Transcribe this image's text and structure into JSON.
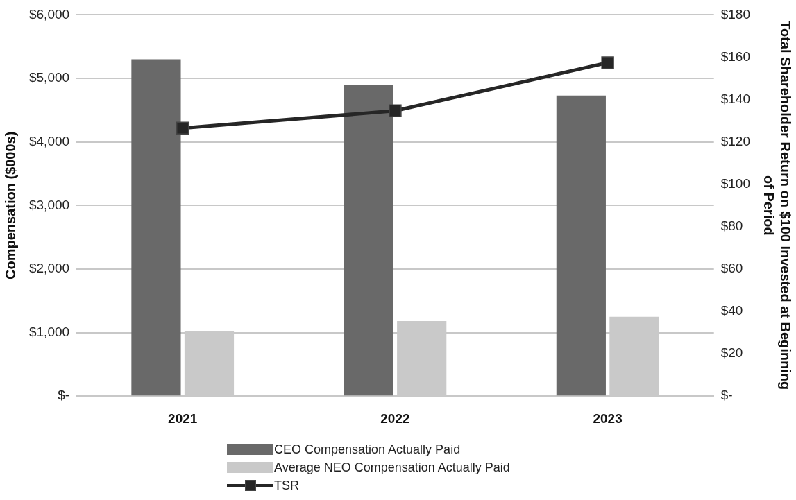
{
  "chart_data": {
    "type": "bar",
    "categories": [
      "2021",
      "2022",
      "2023"
    ],
    "ylabel": "Compensation ($000s)",
    "y2label": "Total Shareholder Return on $100 Invested at Beginning of Period",
    "series": [
      {
        "name": "CEO Compensation Actually Paid",
        "color": "#696969",
        "values": [
          5300,
          4890,
          4730
        ]
      },
      {
        "name": "Average NEO Compensation Actually Paid",
        "color": "#c9c9c9",
        "values": [
          1020,
          1180,
          1250
        ]
      },
      {
        "name": "TSR",
        "type": "line",
        "axis": "y2",
        "color": "#262626",
        "marker": "square",
        "values": [
          126.5,
          134.7,
          157.4
        ]
      }
    ],
    "ylim": [
      0,
      6000
    ],
    "yticks": [
      {
        "value": 0,
        "label": "$-"
      },
      {
        "value": 1000,
        "label": "$1,000"
      },
      {
        "value": 2000,
        "label": "$2,000"
      },
      {
        "value": 3000,
        "label": "$3,000"
      },
      {
        "value": 4000,
        "label": "$4,000"
      },
      {
        "value": 5000,
        "label": "$5,000"
      },
      {
        "value": 6000,
        "label": "$6,000"
      }
    ],
    "y2lim": [
      0,
      180
    ],
    "y2ticks": [
      {
        "value": 0,
        "label": "$-"
      },
      {
        "value": 20,
        "label": "$20"
      },
      {
        "value": 40,
        "label": "$40"
      },
      {
        "value": 60,
        "label": "$60"
      },
      {
        "value": 80,
        "label": "$80"
      },
      {
        "value": 100,
        "label": "$100"
      },
      {
        "value": 120,
        "label": "$120"
      },
      {
        "value": 140,
        "label": "$140"
      },
      {
        "value": 160,
        "label": "$160"
      },
      {
        "value": 180,
        "label": "$180"
      }
    ],
    "grid": "y",
    "legend": "bottom"
  }
}
